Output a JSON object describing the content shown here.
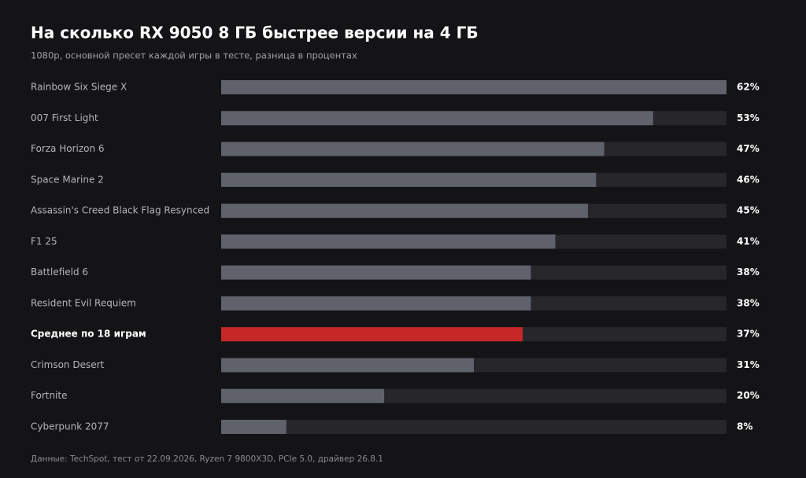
{
  "chart_data": {
    "type": "hbar",
    "title": "На сколько RX 9050 8 ГБ быстрее версии на 4 ГБ",
    "subtitle": "1080p, основной пресет каждой игры в тесте, разница в процентах",
    "categories": [
      "Rainbow Six Siege X",
      "007 First Light",
      "Forza Horizon 6",
      "Space Marine 2",
      "Assassin's Creed Black Flag Resynced",
      "F1 25",
      "Battlefield 6",
      "Resident Evil Requiem",
      "Среднее по 18 играм",
      "Crimson Desert",
      "Fortnite",
      "Cyberpunk 2077"
    ],
    "values": [
      62,
      53,
      47,
      46,
      45,
      41,
      38,
      38,
      37,
      31,
      20,
      8
    ],
    "value_labels": [
      "62%",
      "53%",
      "47%",
      "46%",
      "45%",
      "41%",
      "38%",
      "38%",
      "37%",
      "31%",
      "20%",
      "8%"
    ],
    "color": "#5f626b",
    "colors": [
      "#5f626b",
      "#5f626b",
      "#5f626b",
      "#5f626b",
      "#5f626b",
      "#5f626b",
      "#5f626b",
      "#5f626b",
      "#c62828",
      "#5f626b",
      "#5f626b",
      "#5f626b"
    ],
    "track_color": "#26262b",
    "xlim": [
      0,
      62
    ],
    "source": "Данные: TechSpot, тест от 22.09.2026, Ryzen 7 9800X3D, PCIe 5.0, драйвер 26.8.1"
  }
}
